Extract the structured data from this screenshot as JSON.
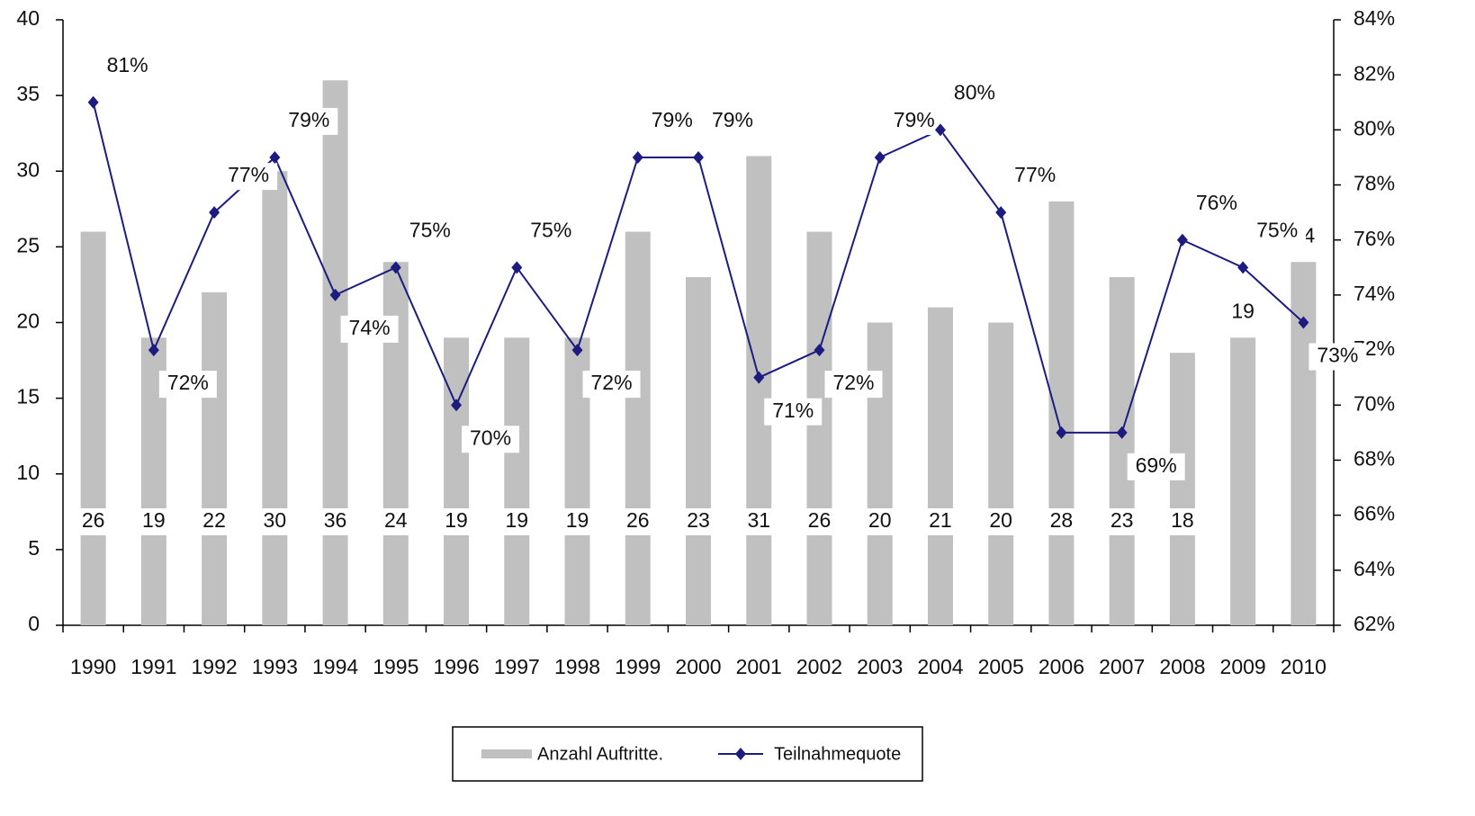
{
  "chart_data": {
    "type": "bar-line",
    "categories": [
      "1990",
      "1991",
      "1992",
      "1993",
      "1994",
      "1995",
      "1996",
      "1997",
      "1998",
      "1999",
      "2000",
      "2001",
      "2002",
      "2003",
      "2004",
      "2005",
      "2006",
      "2007",
      "2008",
      "2009",
      "2010"
    ],
    "series": [
      {
        "name": "Anzahl Auftritte.",
        "type": "bar",
        "color": "#c0c0c0",
        "values": [
          26,
          19,
          22,
          30,
          36,
          24,
          19,
          19,
          19,
          26,
          23,
          31,
          26,
          20,
          21,
          20,
          28,
          23,
          18,
          19,
          24
        ]
      },
      {
        "name": "Teilnahmequote",
        "type": "line",
        "axis": "y2",
        "color": "#1c1c80",
        "values": [
          81,
          72,
          77,
          79,
          74,
          75,
          70,
          75,
          72,
          79,
          79,
          71,
          72,
          79,
          80,
          77,
          69,
          69,
          76,
          75,
          73
        ],
        "value_labels": [
          "81%",
          "72%",
          "77%",
          "79%",
          "74%",
          "75%",
          "70%",
          "75%",
          "72%",
          "79%",
          "79%",
          "71%",
          "72%",
          "79%",
          "80%",
          "77%",
          null,
          "69%",
          "76%",
          "75%",
          "73%"
        ]
      }
    ],
    "ylim": [
      0,
      40
    ],
    "yticks": [
      0,
      5,
      10,
      15,
      20,
      25,
      30,
      35,
      40
    ],
    "y2lim": [
      62,
      84
    ],
    "y2ticks": [
      {
        "value": 62,
        "label": "62%"
      },
      {
        "value": 64,
        "label": "64%"
      },
      {
        "value": 66,
        "label": "66%"
      },
      {
        "value": 68,
        "label": "68%"
      },
      {
        "value": 70,
        "label": "70%"
      },
      {
        "value": 72,
        "label": "72%"
      },
      {
        "value": 74,
        "label": "74%"
      },
      {
        "value": 76,
        "label": "76%"
      },
      {
        "value": 78,
        "label": "78%"
      },
      {
        "value": 80,
        "label": "80%"
      },
      {
        "value": 82,
        "label": "82%"
      },
      {
        "value": 84,
        "label": "84%"
      }
    ],
    "grid": false
  }
}
